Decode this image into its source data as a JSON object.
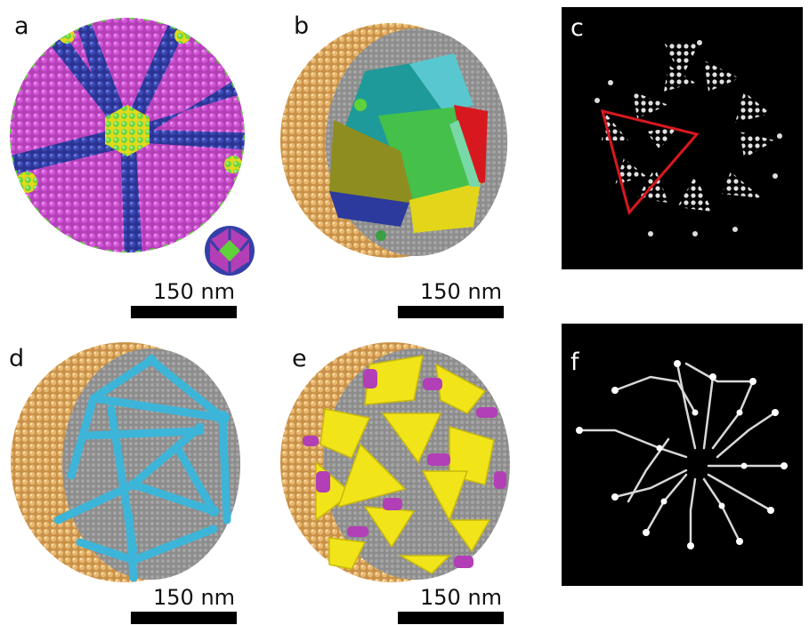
{
  "panels": {
    "a": {
      "label": "a",
      "scale": "150 nm"
    },
    "b": {
      "label": "b",
      "scale": "150 nm"
    },
    "c": {
      "label": "c"
    },
    "d": {
      "label": "d",
      "scale": "150 nm"
    },
    "e": {
      "label": "e",
      "scale": "150 nm"
    },
    "f": {
      "label": "f"
    }
  },
  "colors": {
    "magenta": "#b23fb5",
    "blue": "#3440a8",
    "green": "#5fd13a",
    "yellow": "#f5e21a",
    "gold": "#d9a860",
    "gray": "#8a8a8a",
    "cyan": "#3db5d8",
    "red": "#d8181f",
    "teal": "#1fa0a0",
    "olive": "#9a9a2a"
  }
}
